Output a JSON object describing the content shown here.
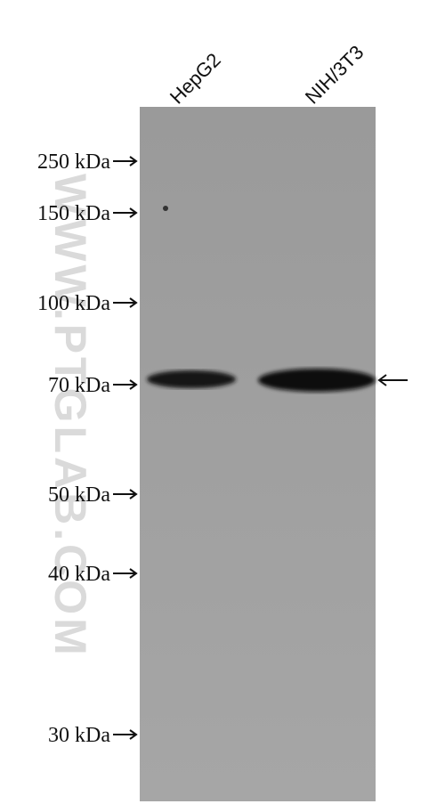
{
  "lanes": [
    {
      "label": "HepG2"
    },
    {
      "label": "NIH/3T3"
    }
  ],
  "markers": [
    {
      "label": "250 kDa"
    },
    {
      "label": "150 kDa"
    },
    {
      "label": "100 kDa"
    },
    {
      "label": "70 kDa"
    },
    {
      "label": "50 kDa"
    },
    {
      "label": "40 kDa"
    },
    {
      "label": "30 kDa"
    }
  ],
  "watermark": "WWW.PTGLAB.COM"
}
